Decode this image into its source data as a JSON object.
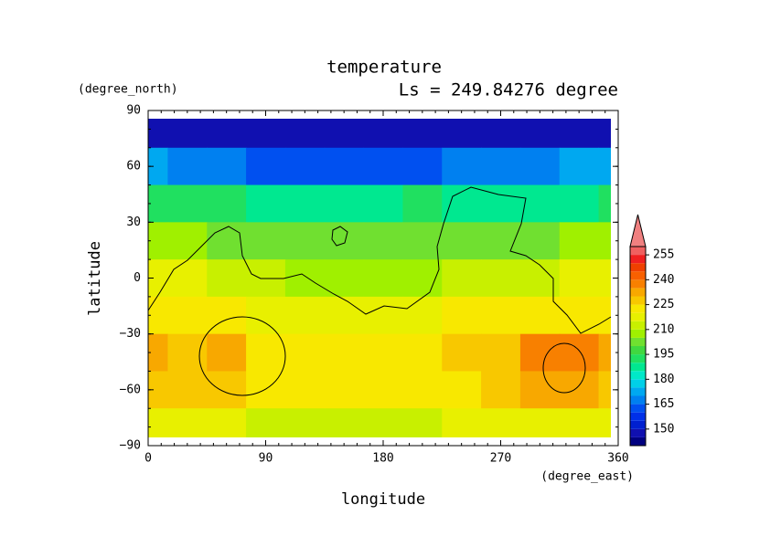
{
  "chart_data": {
    "type": "heatmap",
    "title": "temperature",
    "subtitle": "Ls = 249.84276 degree",
    "x_label": "longitude",
    "x_unit": "(degree_east)",
    "y_label": "latitude",
    "y_unit": "(degree_north)",
    "x": [
      0,
      30,
      60,
      90,
      120,
      150,
      180,
      210,
      240,
      270,
      300,
      330,
      360
    ],
    "y": [
      80,
      60,
      40,
      20,
      0,
      -20,
      -40,
      -60,
      -80
    ],
    "values": [
      [
        147,
        147,
        147,
        147,
        147,
        147,
        146,
        146,
        147,
        147,
        147,
        147,
        147
      ],
      [
        170,
        168,
        165,
        162,
        160,
        160,
        160,
        162,
        165,
        168,
        168,
        170,
        170
      ],
      [
        192,
        192,
        190,
        188,
        188,
        188,
        188,
        190,
        188,
        185,
        185,
        188,
        192
      ],
      [
        205,
        205,
        203,
        200,
        200,
        200,
        200,
        200,
        200,
        202,
        203,
        205,
        205
      ],
      [
        215,
        215,
        213,
        210,
        208,
        207,
        207,
        208,
        210,
        212,
        213,
        215,
        215
      ],
      [
        222,
        222,
        220,
        218,
        218,
        217,
        217,
        218,
        220,
        222,
        223,
        222,
        222
      ],
      [
        232,
        228,
        230,
        222,
        222,
        220,
        220,
        220,
        225,
        228,
        235,
        237,
        232
      ],
      [
        228,
        226,
        225,
        220,
        220,
        220,
        220,
        220,
        222,
        228,
        232,
        230,
        228
      ],
      [
        215,
        215,
        215,
        213,
        213,
        213,
        213,
        213,
        215,
        218,
        218,
        218,
        215
      ]
    ],
    "xlim": [
      0,
      360
    ],
    "xticks": [
      0,
      90,
      180,
      270,
      360
    ],
    "ylim": [
      -90,
      90
    ],
    "yticks": [
      90,
      60,
      30,
      0,
      {
        "value": -30,
        "label": "−30"
      },
      {
        "value": -60,
        "label": "−60"
      },
      {
        "value": -90,
        "label": "−90"
      }
    ],
    "colorbar": {
      "levels": [
        140,
        145,
        150,
        155,
        160,
        165,
        170,
        175,
        180,
        185,
        190,
        195,
        200,
        205,
        210,
        215,
        220,
        225,
        230,
        235,
        240,
        245,
        250,
        255,
        260
      ],
      "colors": [
        "#000080",
        "#1010b0",
        "#0020d0",
        "#0030e8",
        "#0050f0",
        "#0080f0",
        "#00a8f0",
        "#00d0e8",
        "#00e8c8",
        "#00e890",
        "#20e060",
        "#40d840",
        "#70e030",
        "#a0f000",
        "#c8f000",
        "#e8f000",
        "#f8e800",
        "#f8c800",
        "#f8a800",
        "#f88000",
        "#f86000",
        "#f04000",
        "#f02020",
        "#f06060"
      ],
      "over_color": "#f08080",
      "ticks": [
        150,
        165,
        180,
        195,
        210,
        225,
        240,
        255
      ]
    }
  }
}
